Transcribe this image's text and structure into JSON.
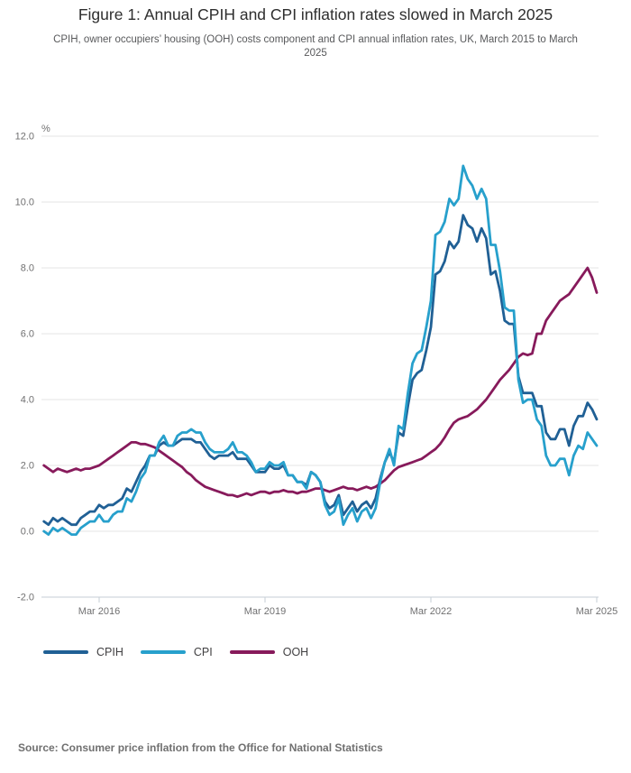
{
  "header": {
    "title": "Figure 1: Annual CPIH and CPI inflation rates slowed in March 2025",
    "subtitle": "CPIH, owner occupiers’ housing (OOH) costs component and CPI annual inflation rates, UK, March 2015 to March 2025"
  },
  "footer": {
    "source": "Source: Consumer price inflation from the Office for National Statistics"
  },
  "chart_data": {
    "type": "line",
    "unit_label": "%",
    "grid": true,
    "legend_position": "bottom",
    "x_range": [
      "March 2015",
      "March 2025"
    ],
    "x_frequency": "monthly",
    "ylim": [
      -2,
      12
    ],
    "y_ticks": [
      -2,
      0,
      2,
      4,
      6,
      8,
      10,
      12
    ],
    "y_tick_labels": [
      "-2.0",
      "0.0",
      "2.0",
      "4.0",
      "6.0",
      "8.0",
      "10.0",
      "12.0"
    ],
    "x_ticks": [
      {
        "label": "Mar 2016",
        "month_index": 12
      },
      {
        "label": "Mar 2019",
        "month_index": 48
      },
      {
        "label": "Mar 2022",
        "month_index": 84
      },
      {
        "label": "Mar 2025",
        "month_index": 120
      }
    ],
    "colors": {
      "grid": "#e6e6e6",
      "axis": "#c5cdd4",
      "axis_text": "#707071"
    },
    "series": [
      {
        "name": "CPIH",
        "color": "#206095",
        "values": [
          0.3,
          0.2,
          0.4,
          0.3,
          0.4,
          0.3,
          0.2,
          0.2,
          0.4,
          0.5,
          0.6,
          0.6,
          0.8,
          0.7,
          0.8,
          0.8,
          0.9,
          1.0,
          1.3,
          1.2,
          1.5,
          1.8,
          2.0,
          2.3,
          2.3,
          2.6,
          2.7,
          2.6,
          2.6,
          2.7,
          2.8,
          2.8,
          2.8,
          2.7,
          2.7,
          2.5,
          2.3,
          2.2,
          2.3,
          2.3,
          2.3,
          2.4,
          2.2,
          2.2,
          2.2,
          2.0,
          1.8,
          1.8,
          1.8,
          2.0,
          1.9,
          1.9,
          2.0,
          1.7,
          1.7,
          1.5,
          1.5,
          1.4,
          1.8,
          1.7,
          1.5,
          0.9,
          0.7,
          0.8,
          1.1,
          0.5,
          0.7,
          0.9,
          0.6,
          0.8,
          0.9,
          0.7,
          1.0,
          1.6,
          2.1,
          2.4,
          2.1,
          3.0,
          2.9,
          3.8,
          4.6,
          4.8,
          4.9,
          5.5,
          6.2,
          7.8,
          7.9,
          8.2,
          8.8,
          8.6,
          8.8,
          9.6,
          9.3,
          9.2,
          8.8,
          9.2,
          8.9,
          7.8,
          7.9,
          7.3,
          6.4,
          6.3,
          6.3,
          4.7,
          4.2,
          4.2,
          4.2,
          3.8,
          3.8,
          3.0,
          2.8,
          2.8,
          3.1,
          3.1,
          2.6,
          3.2,
          3.5,
          3.5,
          3.9,
          3.7,
          3.4
        ]
      },
      {
        "name": "CPI",
        "color": "#27A0CC",
        "values": [
          0.0,
          -0.1,
          0.1,
          0.0,
          0.1,
          0.0,
          -0.1,
          -0.1,
          0.1,
          0.2,
          0.3,
          0.3,
          0.5,
          0.3,
          0.3,
          0.5,
          0.6,
          0.6,
          1.0,
          0.9,
          1.2,
          1.6,
          1.8,
          2.3,
          2.3,
          2.7,
          2.9,
          2.6,
          2.6,
          2.9,
          3.0,
          3.0,
          3.1,
          3.0,
          3.0,
          2.7,
          2.5,
          2.4,
          2.4,
          2.4,
          2.5,
          2.7,
          2.4,
          2.4,
          2.3,
          2.1,
          1.8,
          1.9,
          1.9,
          2.1,
          2.0,
          2.0,
          2.1,
          1.7,
          1.7,
          1.5,
          1.5,
          1.3,
          1.8,
          1.7,
          1.5,
          0.8,
          0.5,
          0.6,
          1.0,
          0.2,
          0.5,
          0.7,
          0.3,
          0.6,
          0.7,
          0.4,
          0.7,
          1.5,
          2.1,
          2.5,
          2.0,
          3.2,
          3.1,
          4.2,
          5.1,
          5.4,
          5.5,
          6.2,
          7.0,
          9.0,
          9.1,
          9.4,
          10.1,
          9.9,
          10.1,
          11.1,
          10.7,
          10.5,
          10.1,
          10.4,
          10.1,
          8.7,
          8.7,
          7.9,
          6.8,
          6.7,
          6.7,
          4.6,
          3.9,
          4.0,
          4.0,
          3.4,
          3.2,
          2.3,
          2.0,
          2.0,
          2.2,
          2.2,
          1.7,
          2.3,
          2.6,
          2.5,
          3.0,
          2.8,
          2.6
        ]
      },
      {
        "name": "OOH",
        "color": "#871A5B",
        "values": [
          2.0,
          1.9,
          1.8,
          1.9,
          1.85,
          1.8,
          1.85,
          1.9,
          1.85,
          1.9,
          1.9,
          1.95,
          2.0,
          2.1,
          2.2,
          2.3,
          2.4,
          2.5,
          2.6,
          2.7,
          2.7,
          2.65,
          2.65,
          2.6,
          2.55,
          2.45,
          2.35,
          2.25,
          2.15,
          2.05,
          1.95,
          1.8,
          1.7,
          1.55,
          1.45,
          1.35,
          1.3,
          1.25,
          1.2,
          1.15,
          1.1,
          1.1,
          1.05,
          1.1,
          1.15,
          1.1,
          1.15,
          1.2,
          1.2,
          1.15,
          1.2,
          1.2,
          1.25,
          1.2,
          1.2,
          1.15,
          1.2,
          1.2,
          1.25,
          1.3,
          1.3,
          1.25,
          1.2,
          1.25,
          1.3,
          1.35,
          1.3,
          1.3,
          1.25,
          1.3,
          1.35,
          1.3,
          1.35,
          1.45,
          1.55,
          1.7,
          1.85,
          1.95,
          2.0,
          2.05,
          2.1,
          2.15,
          2.2,
          2.3,
          2.4,
          2.5,
          2.65,
          2.85,
          3.1,
          3.3,
          3.4,
          3.45,
          3.5,
          3.6,
          3.7,
          3.85,
          4.0,
          4.2,
          4.4,
          4.6,
          4.75,
          4.9,
          5.1,
          5.3,
          5.4,
          5.35,
          5.4,
          6.0,
          6.0,
          6.4,
          6.6,
          6.8,
          7.0,
          7.1,
          7.2,
          7.4,
          7.6,
          7.8,
          8.0,
          7.7,
          7.25
        ]
      }
    ]
  }
}
